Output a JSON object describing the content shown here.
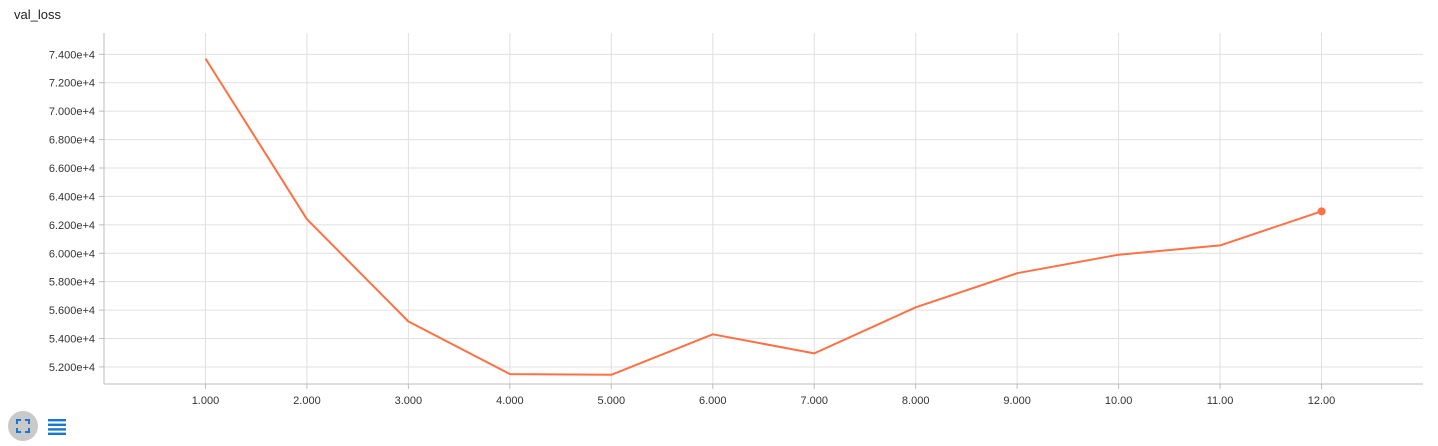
{
  "title": "val_loss",
  "chart_data": {
    "type": "line",
    "xlim": [
      0,
      13
    ],
    "ylim": [
      50800,
      75500
    ],
    "x_ticks": [
      "1.000",
      "2.000",
      "3.000",
      "4.000",
      "5.000",
      "6.000",
      "7.000",
      "8.000",
      "9.000",
      "10.00",
      "11.00",
      "12.00"
    ],
    "y_ticks": [
      "5.200e+4",
      "5.400e+4",
      "5.600e+4",
      "5.800e+4",
      "6.000e+4",
      "6.200e+4",
      "6.400e+4",
      "6.600e+4",
      "6.800e+4",
      "7.000e+4",
      "7.200e+4",
      "7.400e+4"
    ],
    "grid": true,
    "series": [
      {
        "color": "#ff7043",
        "x": [
          1,
          2,
          3,
          4,
          5,
          6,
          7,
          8,
          9,
          10,
          11,
          12
        ],
        "y": [
          73700,
          62400,
          55200,
          51500,
          51450,
          54300,
          52950,
          56200,
          58600,
          59900,
          60550,
          62950
        ]
      }
    ]
  },
  "controls": {
    "expand_icon": "fullscreen-icon",
    "data_icon": "list-icon",
    "icon_color": "#1976d2"
  }
}
